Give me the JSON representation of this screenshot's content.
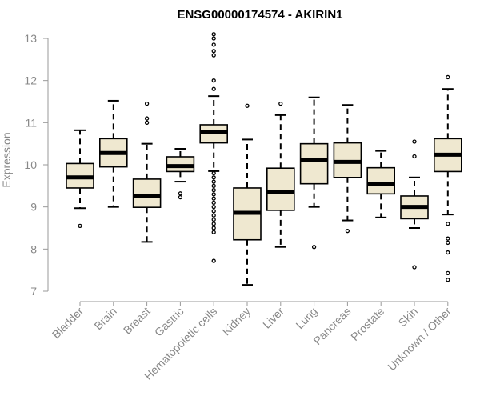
{
  "chart_data": {
    "type": "boxplot",
    "title": "ENSG00000174574 - AKIRIN1",
    "xlabel": "",
    "ylabel": "Expression",
    "ylim": [
      7,
      13
    ],
    "yticks": [
      7,
      8,
      9,
      10,
      11,
      12,
      13
    ],
    "grid": false,
    "box_fill": "#efe8d0",
    "axis_color": "#999999",
    "label_color": "#888888",
    "categories": [
      "Bladder",
      "Brain",
      "Breast",
      "Gastric",
      "Hematopoietic cells",
      "Kidney",
      "Liver",
      "Lung",
      "Pancreas",
      "Prostate",
      "Skin",
      "Unknown / Other"
    ],
    "boxes": [
      {
        "name": "Bladder",
        "min": 8.97,
        "q1": 9.45,
        "median": 9.7,
        "q3": 10.03,
        "max": 10.82,
        "outliers": [
          8.55
        ]
      },
      {
        "name": "Brain",
        "min": 9.0,
        "q1": 9.95,
        "median": 10.28,
        "q3": 10.62,
        "max": 11.52,
        "outliers": []
      },
      {
        "name": "Breast",
        "min": 8.17,
        "q1": 8.99,
        "median": 9.26,
        "q3": 9.66,
        "max": 10.5,
        "outliers": [
          11.0,
          11.1,
          11.45
        ]
      },
      {
        "name": "Gastric",
        "min": 9.6,
        "q1": 9.84,
        "median": 9.97,
        "q3": 10.19,
        "max": 10.38,
        "outliers": [
          9.23,
          9.32
        ]
      },
      {
        "name": "Hematopoietic cells",
        "min": 9.85,
        "q1": 10.52,
        "median": 10.77,
        "q3": 10.95,
        "max": 11.63,
        "outliers": [
          13.1,
          13.0,
          12.85,
          12.7,
          12.6,
          12.0,
          11.8,
          9.8,
          9.7,
          9.6,
          9.5,
          9.4,
          9.3,
          9.2,
          9.1,
          9.0,
          8.9,
          8.8,
          8.7,
          8.6,
          8.5,
          8.4,
          7.72
        ]
      },
      {
        "name": "Kidney",
        "min": 7.15,
        "q1": 8.22,
        "median": 8.86,
        "q3": 9.45,
        "max": 10.6,
        "outliers": [
          11.4
        ]
      },
      {
        "name": "Liver",
        "min": 8.05,
        "q1": 8.92,
        "median": 9.35,
        "q3": 9.92,
        "max": 11.18,
        "outliers": [
          11.45
        ]
      },
      {
        "name": "Lung",
        "min": 9.0,
        "q1": 9.55,
        "median": 10.11,
        "q3": 10.5,
        "max": 11.6,
        "outliers": [
          8.05
        ]
      },
      {
        "name": "Pancreas",
        "min": 8.68,
        "q1": 9.7,
        "median": 10.07,
        "q3": 10.52,
        "max": 11.42,
        "outliers": [
          8.43
        ]
      },
      {
        "name": "Prostate",
        "min": 8.75,
        "q1": 9.31,
        "median": 9.55,
        "q3": 9.93,
        "max": 10.33,
        "outliers": []
      },
      {
        "name": "Skin",
        "min": 8.5,
        "q1": 8.72,
        "median": 9.0,
        "q3": 9.26,
        "max": 9.7,
        "outliers": [
          10.55,
          10.2,
          7.57
        ]
      },
      {
        "name": "Unknown / Other",
        "min": 8.82,
        "q1": 9.84,
        "median": 10.24,
        "q3": 10.62,
        "max": 11.8,
        "outliers": [
          12.08,
          8.6,
          8.25,
          8.15,
          7.92,
          7.43,
          7.27
        ]
      }
    ]
  }
}
